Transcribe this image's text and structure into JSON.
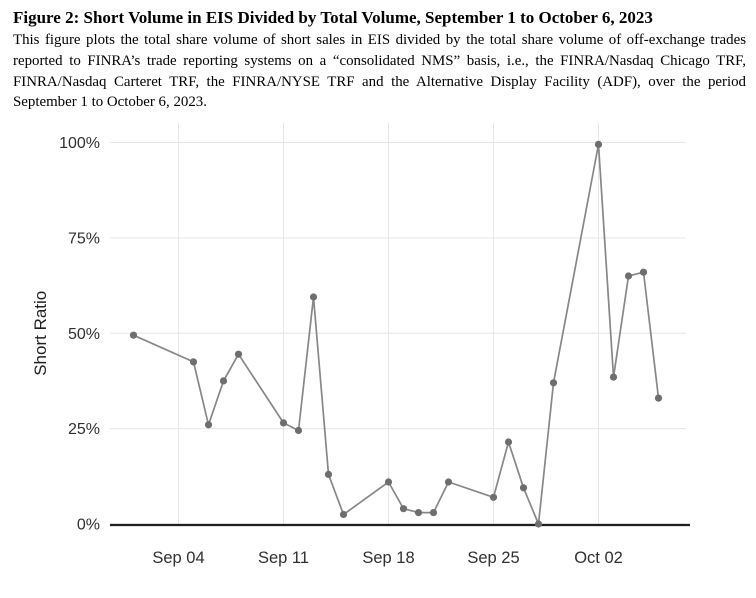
{
  "figure": {
    "title": "Figure 2: Short Volume in EIS Divided by Total Volume, September 1 to October 6, 2023",
    "description": "This figure plots the total share volume of short sales in EIS divided by the total share volume of off-exchange trades reported to FINRA’s trade reporting systems on a “consolidated NMS” basis, i.e., the FINRA/Nasdaq Chicago TRF, FINRA/Nasdaq Carteret TRF, the FINRA/NYSE TRF and the Alternative Display Facility (ADF), over the period September 1 to October 6, 2023."
  },
  "chart_data": {
    "type": "line",
    "title": "",
    "xlabel": "",
    "ylabel": "Short Ratio",
    "ylim": [
      0,
      100
    ],
    "grid": true,
    "legend": "none",
    "y_ticks": [
      {
        "label": "0%",
        "value": 0
      },
      {
        "label": "25%",
        "value": 25
      },
      {
        "label": "50%",
        "value": 50
      },
      {
        "label": "75%",
        "value": 75
      },
      {
        "label": "100%",
        "value": 100
      }
    ],
    "x_ticks": [
      {
        "label": "Sep 04",
        "day": 3
      },
      {
        "label": "Sep 11",
        "day": 10
      },
      {
        "label": "Sep 18",
        "day": 17
      },
      {
        "label": "Sep 25",
        "day": 24
      },
      {
        "label": "Oct 02",
        "day": 31
      }
    ],
    "series": [
      {
        "name": "Short Ratio",
        "points": [
          {
            "date": "Sep 01",
            "day": 0,
            "value": 49.5
          },
          {
            "date": "Sep 05",
            "day": 4,
            "value": 42.5
          },
          {
            "date": "Sep 06",
            "day": 5,
            "value": 26
          },
          {
            "date": "Sep 07",
            "day": 6,
            "value": 37.5
          },
          {
            "date": "Sep 08",
            "day": 7,
            "value": 44.5
          },
          {
            "date": "Sep 11",
            "day": 10,
            "value": 26.5
          },
          {
            "date": "Sep 12",
            "day": 11,
            "value": 24.5
          },
          {
            "date": "Sep 13",
            "day": 12,
            "value": 59.5
          },
          {
            "date": "Sep 14",
            "day": 13,
            "value": 13
          },
          {
            "date": "Sep 15",
            "day": 14,
            "value": 2.5
          },
          {
            "date": "Sep 18",
            "day": 17,
            "value": 11
          },
          {
            "date": "Sep 19",
            "day": 18,
            "value": 4
          },
          {
            "date": "Sep 20",
            "day": 19,
            "value": 3
          },
          {
            "date": "Sep 21",
            "day": 20,
            "value": 3
          },
          {
            "date": "Sep 22",
            "day": 21,
            "value": 11
          },
          {
            "date": "Sep 25",
            "day": 24,
            "value": 7
          },
          {
            "date": "Sep 26",
            "day": 25,
            "value": 21.5
          },
          {
            "date": "Sep 27",
            "day": 26,
            "value": 9.5
          },
          {
            "date": "Sep 28",
            "day": 27,
            "value": 0
          },
          {
            "date": "Sep 29",
            "day": 28,
            "value": 37
          },
          {
            "date": "Oct 02",
            "day": 31,
            "value": 99.5
          },
          {
            "date": "Oct 03",
            "day": 32,
            "value": 38.5
          },
          {
            "date": "Oct 04",
            "day": 33,
            "value": 65
          },
          {
            "date": "Oct 05",
            "day": 34,
            "value": 66
          },
          {
            "date": "Oct 06",
            "day": 35,
            "value": 33
          }
        ]
      }
    ]
  },
  "colors": {
    "line": "#878787",
    "point": "#6e6e6e",
    "gridline": "#e6e6e6",
    "axis_line": "#1f1f1f",
    "tick_text": "#303030",
    "text": "#000000",
    "background": "#ffffff"
  }
}
